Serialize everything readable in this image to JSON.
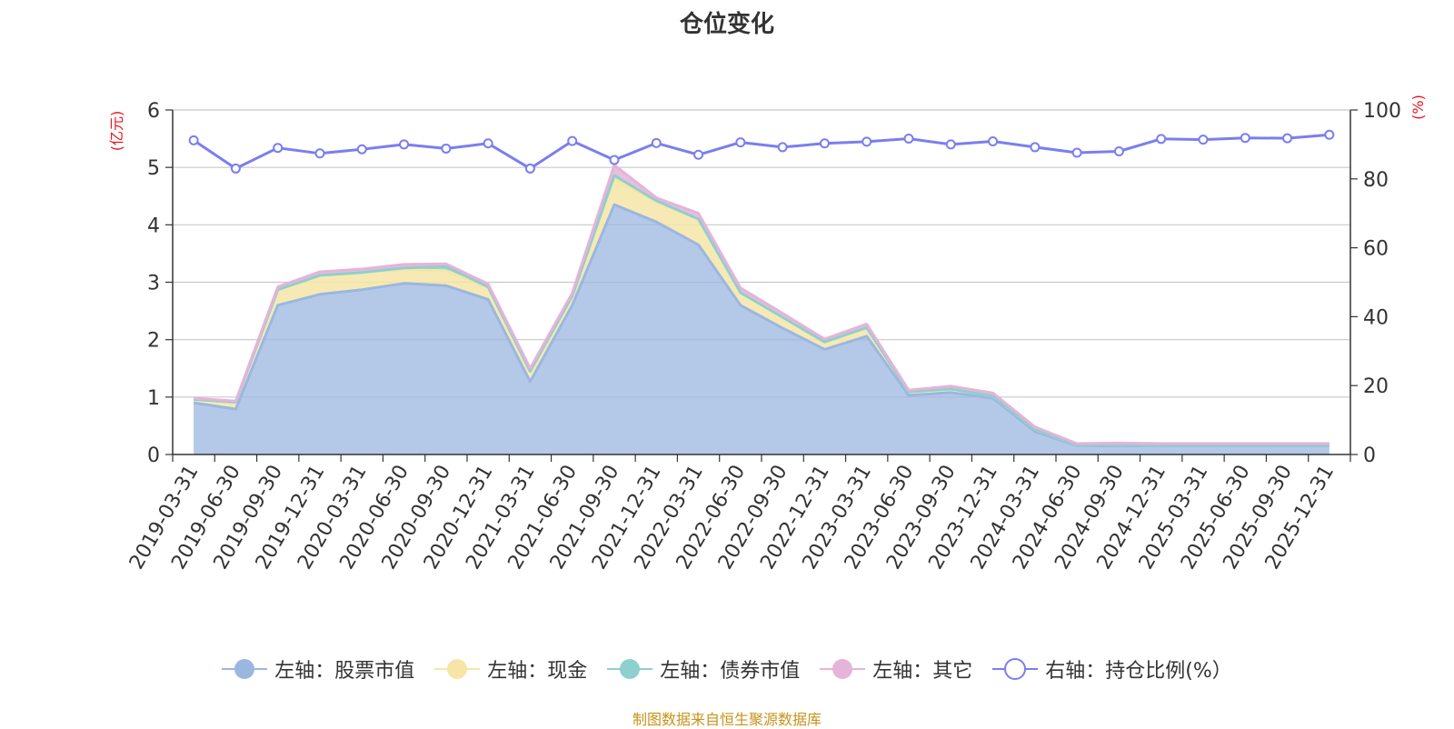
{
  "chart_data": {
    "type": "area",
    "title": "仓位变化",
    "left_axis_unit": "(亿元)",
    "right_axis_unit": "(%)",
    "left_ylim": [
      0,
      6
    ],
    "left_ticks": [
      "0",
      "1",
      "2",
      "3",
      "4",
      "5",
      "6"
    ],
    "right_ylim": [
      0,
      100
    ],
    "right_ticks": [
      "0",
      "20",
      "40",
      "60",
      "80",
      "100"
    ],
    "categories": [
      "2019-03-31",
      "2019-06-30",
      "2019-09-30",
      "2019-12-31",
      "2020-03-31",
      "2020-06-30",
      "2020-09-30",
      "2020-12-31",
      "2021-03-31",
      "2021-06-30",
      "2021-09-30",
      "2021-12-31",
      "2022-03-31",
      "2022-06-30",
      "2022-09-30",
      "2022-12-31",
      "2023-03-31",
      "2023-06-30",
      "2023-09-30",
      "2023-12-31",
      "2024-03-31",
      "2024-06-30",
      "2024-09-30",
      "2024-12-31",
      "2025-03-31",
      "2025-06-30",
      "2025-09-30",
      "2025-12-31"
    ],
    "stacked_series": [
      {
        "name": "左轴：股票市值",
        "color": "#9bb7e0",
        "values": [
          0.9,
          0.79,
          2.6,
          2.79,
          2.87,
          2.98,
          2.94,
          2.7,
          1.27,
          2.6,
          4.35,
          4.05,
          3.65,
          2.6,
          2.2,
          1.83,
          2.06,
          1.03,
          1.08,
          0.98,
          0.4,
          0.15,
          0.15,
          0.15,
          0.15,
          0.15,
          0.15,
          0.15
        ]
      },
      {
        "name": "左轴：现金",
        "color": "#f6e5a6",
        "values": [
          0.06,
          0.12,
          0.27,
          0.33,
          0.3,
          0.24,
          0.26,
          0.2,
          0.18,
          0.16,
          0.45,
          0.35,
          0.45,
          0.22,
          0.19,
          0.13,
          0.15,
          0.06,
          0.06,
          0.04,
          0.04,
          0.01,
          0.02,
          0.01,
          0.01,
          0.01,
          0.01,
          0.01
        ]
      },
      {
        "name": "左轴：债券市值",
        "color": "#8ecfcf",
        "values": [
          0,
          0,
          0,
          0,
          0,
          0.03,
          0.07,
          0.02,
          0,
          0,
          0.06,
          0.02,
          0,
          0,
          0,
          0,
          0,
          0,
          0,
          0,
          0,
          0,
          0,
          0,
          0,
          0,
          0,
          0
        ]
      },
      {
        "name": "左轴：其它",
        "color": "#e6b3d9",
        "values": [
          0.02,
          0.02,
          0.05,
          0.06,
          0.06,
          0.06,
          0.05,
          0.05,
          0.05,
          0.05,
          0.18,
          0.05,
          0.1,
          0.08,
          0.07,
          0.05,
          0.06,
          0.03,
          0.05,
          0.05,
          0.04,
          0.03,
          0.03,
          0.03,
          0.03,
          0.03,
          0.03,
          0.03
        ]
      }
    ],
    "line_series": {
      "name": "右轴：持仓比例(%）",
      "color": "#7b7eee",
      "values": [
        91.2,
        83.0,
        89.0,
        87.4,
        88.6,
        90.0,
        88.8,
        90.3,
        83.0,
        91.0,
        85.5,
        90.4,
        87.0,
        90.6,
        89.2,
        90.3,
        90.8,
        91.7,
        90.0,
        90.9,
        89.2,
        87.6,
        88.0,
        91.6,
        91.4,
        91.9,
        91.8,
        92.8
      ]
    },
    "legend_position": "bottom",
    "grid": true
  },
  "footer": {
    "source": "制图数据来自恒生聚源数据库"
  }
}
